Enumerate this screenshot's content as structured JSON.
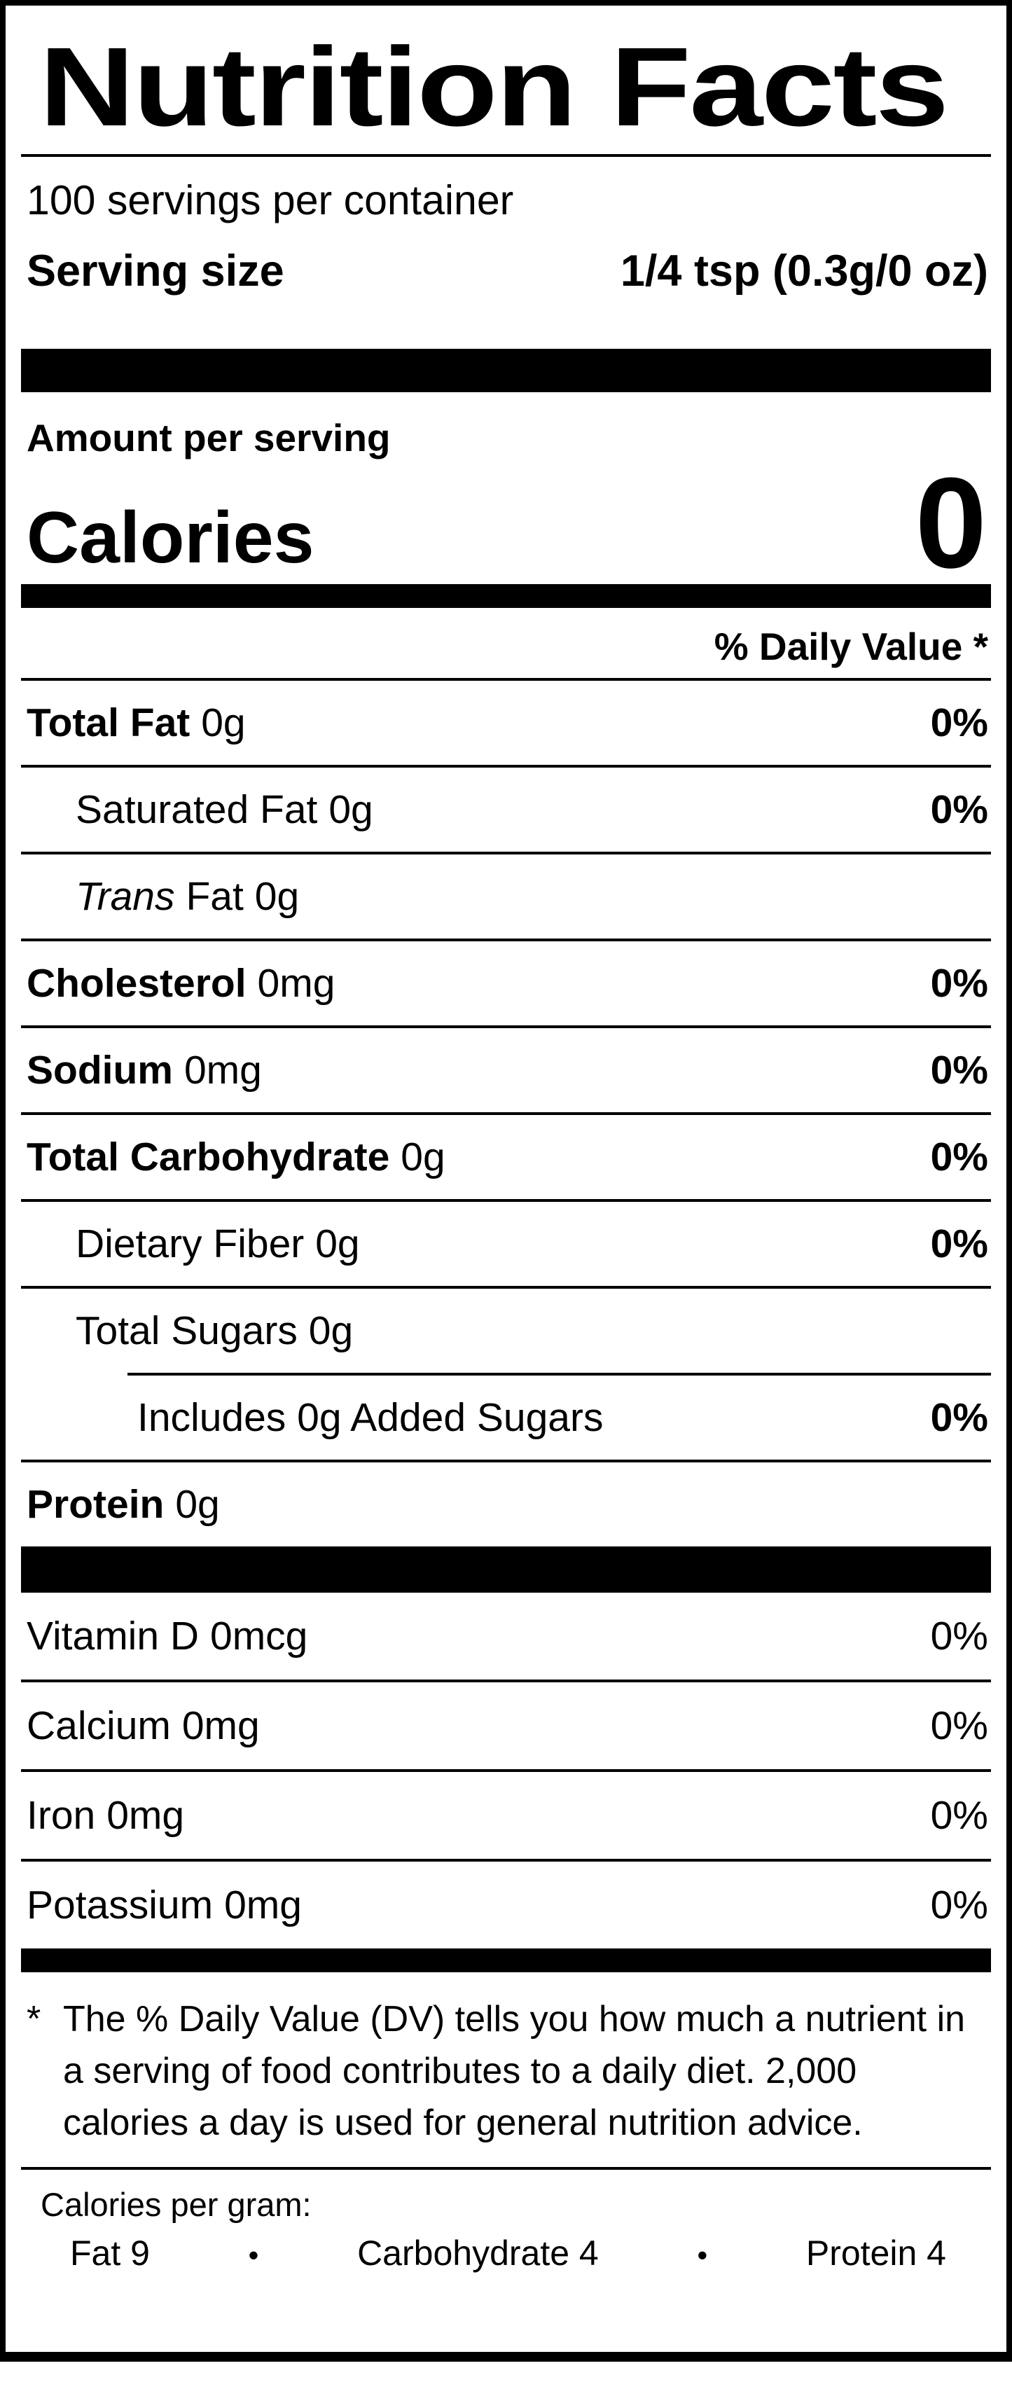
{
  "label": {
    "title": "Nutrition Facts",
    "servings_per_container": "100 servings per container",
    "serving_size": {
      "label": "Serving size",
      "value": "1/4 tsp (0.3g/0 oz)"
    },
    "amount_per_serving": "Amount per serving",
    "calories": {
      "label": "Calories",
      "value": "0"
    },
    "daily_value_header": "% Daily Value *",
    "nutrients": [
      {
        "name": "Total Fat",
        "amount": "0g",
        "dv": "0%"
      },
      {
        "name": "Saturated Fat",
        "amount": "0g",
        "dv": "0%"
      },
      {
        "name_italic": "Trans",
        "name": "Fat",
        "amount": "0g",
        "dv": ""
      },
      {
        "name": "Cholesterol",
        "amount": "0mg",
        "dv": "0%"
      },
      {
        "name": "Sodium",
        "amount": "0mg",
        "dv": "0%"
      },
      {
        "name": "Total Carbohydrate",
        "amount": "0g",
        "dv": "0%"
      },
      {
        "name": "Dietary Fiber",
        "amount": "0g",
        "dv": "0%"
      },
      {
        "name": "Total Sugars",
        "amount": "0g",
        "dv": ""
      },
      {
        "name": "Includes 0g Added Sugars",
        "dv": "0%"
      },
      {
        "name": "Protein",
        "amount": "0g",
        "dv": ""
      }
    ],
    "vitamins": [
      {
        "name": "Vitamin D",
        "amount": "0mcg",
        "dv": "0%"
      },
      {
        "name": "Calcium",
        "amount": "0mg",
        "dv": "0%"
      },
      {
        "name": "Iron",
        "amount": "0mg",
        "dv": "0%"
      },
      {
        "name": "Potassium",
        "amount": "0mg",
        "dv": "0%"
      }
    ],
    "footnote": {
      "symbol": "*",
      "text": "The % Daily Value (DV) tells you how much a nutrient in a serving of food contributes to a daily diet. 2,000 calories a day is used for general nutrition advice."
    },
    "calories_per_gram": {
      "label": "Calories per gram:",
      "items": [
        "Fat 9",
        "Carbohydrate 4",
        "Protein 4"
      ],
      "separator": "•"
    },
    "colors": {
      "ink": "#000000",
      "paper": "#ffffff"
    }
  }
}
